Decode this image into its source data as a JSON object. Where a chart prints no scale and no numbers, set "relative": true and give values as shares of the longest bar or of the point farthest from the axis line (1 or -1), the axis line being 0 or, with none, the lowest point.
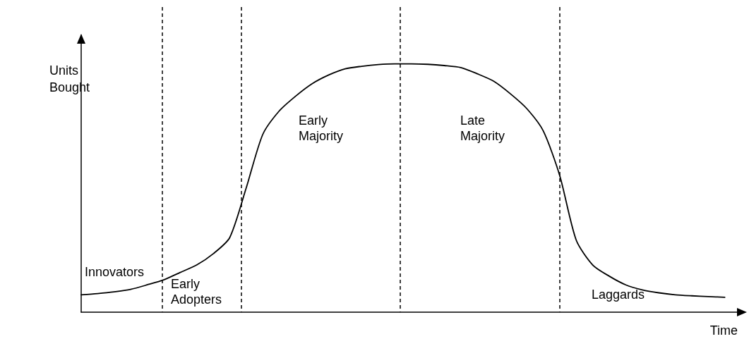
{
  "chart_data": {
    "type": "line",
    "relative": true,
    "xlabel": "Time",
    "ylabel": "Units\nBought",
    "color": "#000000",
    "marker": "none",
    "line_style": "solid",
    "grid": false,
    "tick_labels": false,
    "categories": [
      null,
      null,
      null,
      null,
      null,
      null,
      null,
      null,
      null,
      null,
      null,
      null,
      null,
      null,
      null,
      null,
      null,
      null,
      null,
      null,
      null,
      null,
      null,
      null,
      null,
      null,
      null,
      null,
      null,
      null,
      null,
      null,
      null,
      null,
      null,
      null,
      null,
      null,
      null,
      null,
      null
    ],
    "values": [
      0.07,
      0.075,
      0.082,
      0.092,
      0.11,
      0.13,
      0.16,
      0.19,
      0.235,
      0.3,
      0.5,
      0.715,
      0.81,
      0.87,
      0.92,
      0.955,
      0.98,
      0.99,
      0.997,
      1,
      1,
      0.998,
      0.993,
      0.985,
      0.96,
      0.93,
      0.88,
      0.82,
      0.73,
      0.55,
      0.29,
      0.19,
      0.145,
      0.11,
      0.09,
      0.078,
      0.07,
      0.066,
      0.063,
      0.06,
      null
    ],
    "annotations": [
      "Innovators",
      "Early\nAdopters",
      "Early\nMajority",
      "Late\nMajority",
      "Laggards"
    ]
  }
}
